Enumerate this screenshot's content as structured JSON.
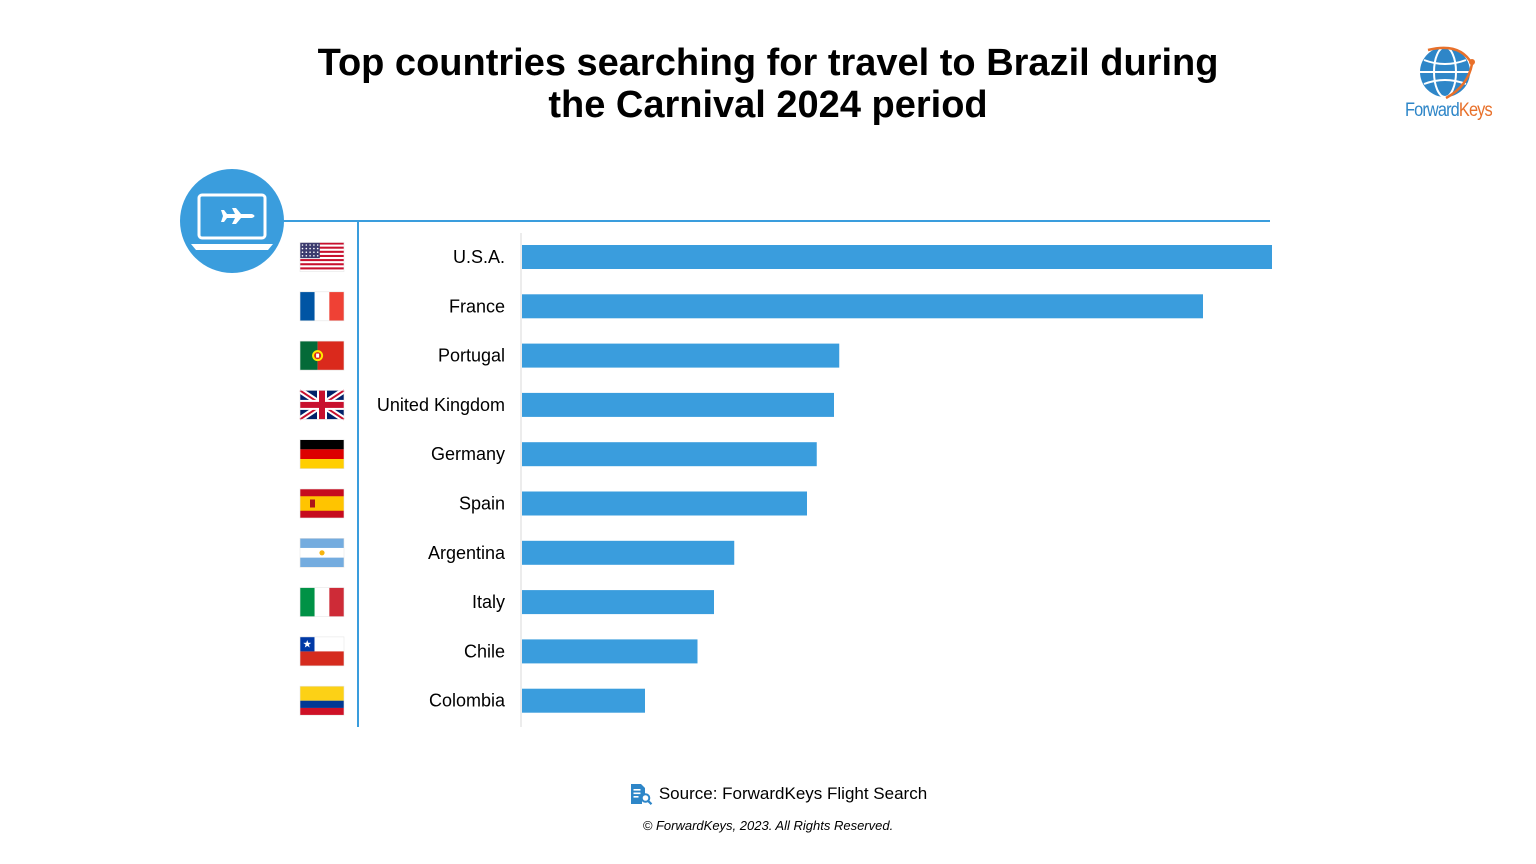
{
  "title": {
    "line1": "Top countries searching for travel to Brazil during",
    "line2": "the Carnival 2024 period"
  },
  "logo": {
    "part1": "Forward",
    "part2": "Keys"
  },
  "source": "Source: ForwardKeys Flight Search",
  "copyright": "© ForwardKeys, 2023. All Rights Reserved.",
  "icons": {
    "header": "laptop-airplane-icon",
    "source": "document-search-icon",
    "logo": "globe-icon"
  },
  "colors": {
    "bar": "#3a9ddd",
    "accent": "#2e86c8",
    "logo_orange": "#e8702a",
    "axis": "#3a9ddd"
  },
  "chart_data": {
    "type": "bar",
    "orientation": "horizontal",
    "categories": [
      "U.S.A.",
      "France",
      "Portugal",
      "United Kingdom",
      "Germany",
      "Spain",
      "Argentina",
      "Italy",
      "Chile",
      "Colombia"
    ],
    "flags": [
      "flag-usa-icon",
      "flag-france-icon",
      "flag-portugal-icon",
      "flag-uk-icon",
      "flag-germany-icon",
      "flag-spain-icon",
      "flag-argentina-icon",
      "flag-italy-icon",
      "flag-chile-icon",
      "flag-colombia-icon"
    ],
    "values": [
      100,
      90.8,
      42.3,
      41.6,
      39.3,
      38.0,
      28.3,
      25.6,
      23.4,
      16.4
    ],
    "xlim": [
      0,
      100
    ],
    "value_axis_shown": false,
    "grid": false,
    "legend": "none"
  }
}
